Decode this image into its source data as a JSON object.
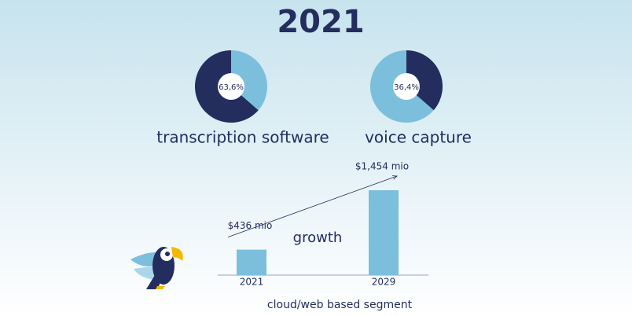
{
  "title": "2021",
  "chart_data": [
    {
      "type": "pie",
      "title": "transcription software",
      "values": [
        36.4,
        63.6
      ],
      "colors": [
        "#7bbfdc",
        "#232d5e"
      ],
      "value_labels": [
        null,
        "63,6%"
      ]
    },
    {
      "type": "pie",
      "title": "voice capture",
      "values": [
        36.4,
        63.6
      ],
      "colors": [
        "#232d5e",
        "#7bbfdc"
      ],
      "value_labels": [
        "36,4%",
        null
      ]
    },
    {
      "type": "bar",
      "categories": [
        "2021",
        "2029"
      ],
      "values": [
        436,
        1454
      ],
      "value_labels": [
        "$436 mio",
        "$1,454 mio"
      ],
      "color": "#7bbfdc",
      "annotation": "growth",
      "xlabel": "cloud/web based segment"
    }
  ]
}
